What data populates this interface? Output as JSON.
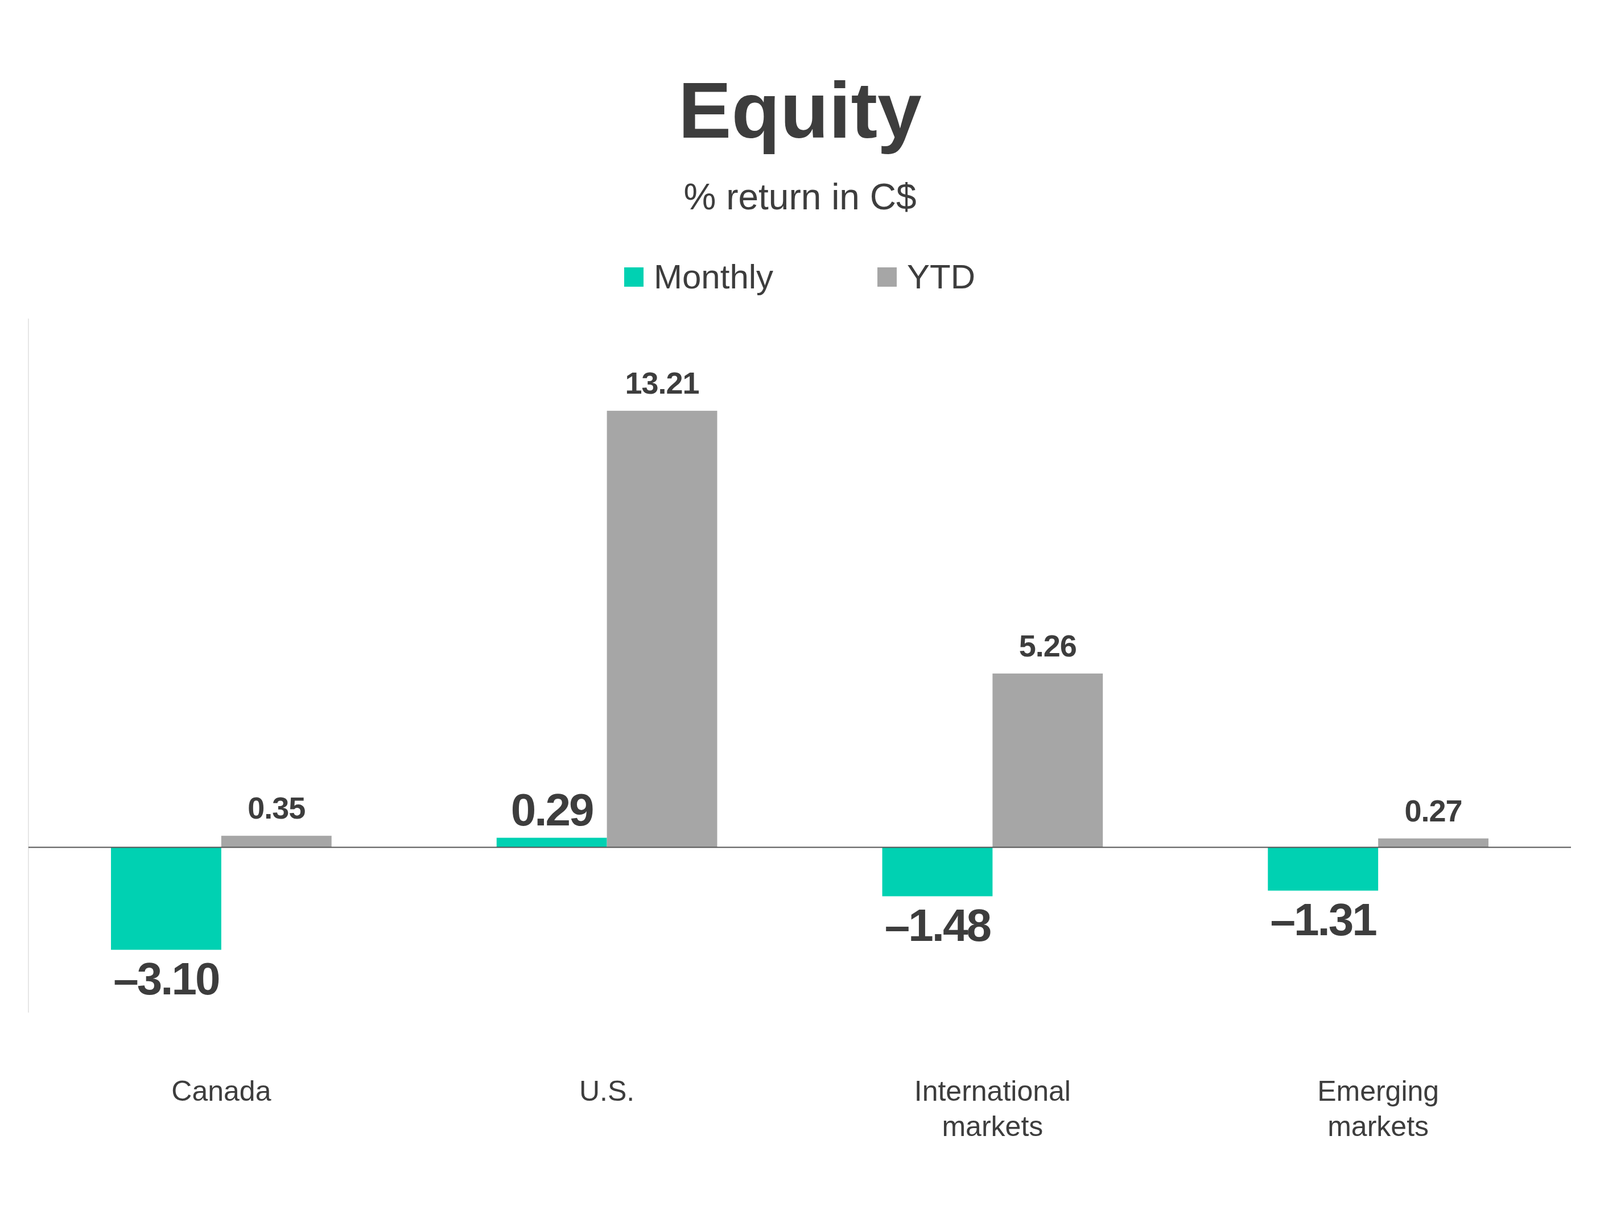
{
  "chart_data": {
    "type": "bar",
    "title": "Equity",
    "subtitle": "% return in C$",
    "categories": [
      "Canada",
      "U.S.",
      "International markets",
      "Emerging markets"
    ],
    "series": [
      {
        "name": "Monthly",
        "color": "#00d1b2",
        "values": [
          -3.1,
          0.29,
          -1.48,
          -1.31
        ],
        "value_labels": [
          "–3.10",
          "0.29",
          "–1.48",
          "–1.31"
        ]
      },
      {
        "name": "YTD",
        "color": "#a6a6a6",
        "values": [
          0.35,
          13.21,
          5.26,
          0.27
        ]
      }
    ],
    "ylim": [
      -5,
      16
    ],
    "yticks": [
      0
    ],
    "tick_labels": "x",
    "grid": false,
    "legend": "top",
    "data_labels": true
  }
}
